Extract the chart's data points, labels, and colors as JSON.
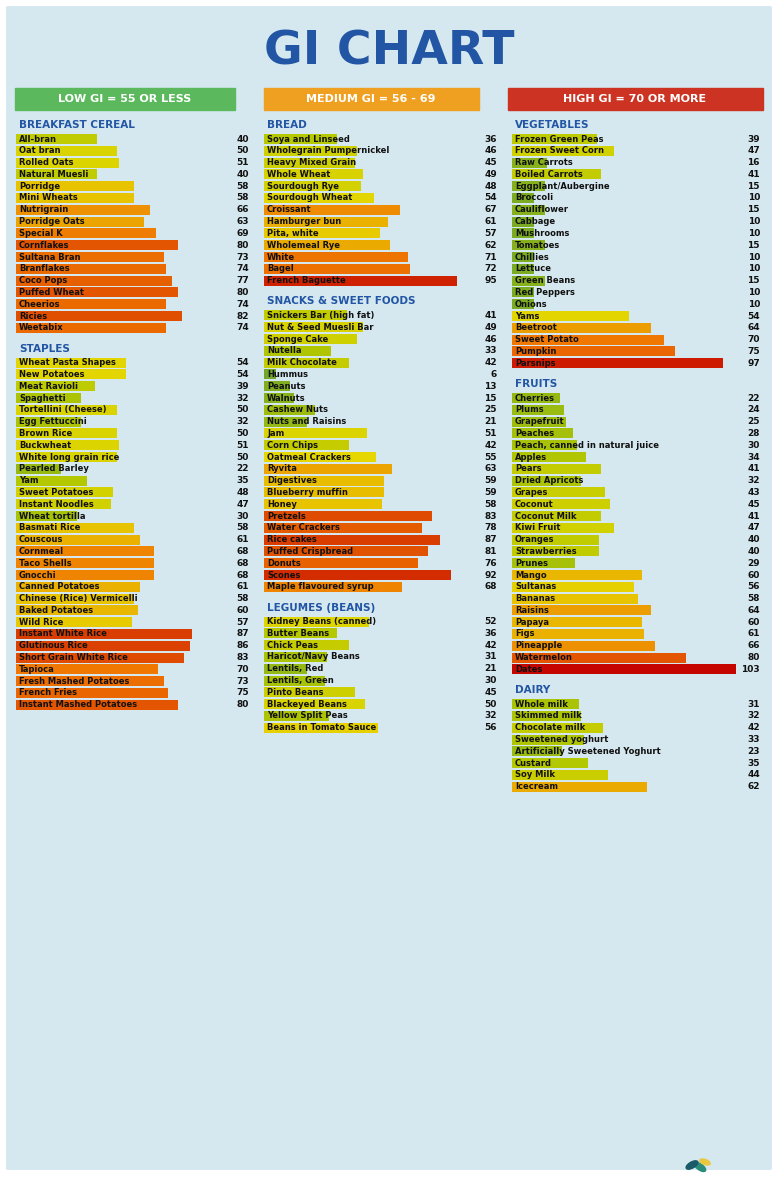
{
  "title": "GI CHART",
  "title_color": "#2255a4",
  "bg_color": "#d8e8f0",
  "low_label": "LOW GI = 55 OR LESS",
  "med_label": "MEDIUM GI = 56 - 69",
  "high_label": "HIGH GI = 70 OR MORE",
  "low_color": "#5cb85c",
  "med_color": "#f0a020",
  "high_color": "#cc3322",
  "section_title_color": "#2255a4",
  "bar_max_gi": 105,
  "columns": [
    {
      "sections": [
        {
          "title": "BREAKFAST CEREAL",
          "items": [
            [
              "All-bran",
              40
            ],
            [
              "Oat bran",
              50
            ],
            [
              "Rolled Oats",
              51
            ],
            [
              "Natural Muesli",
              40
            ],
            [
              "Porridge",
              58
            ],
            [
              "Mini Wheats",
              58
            ],
            [
              "Nutrigrain",
              66
            ],
            [
              "Porridge Oats",
              63
            ],
            [
              "Special K",
              69
            ],
            [
              "Cornflakes",
              80
            ],
            [
              "Sultana Bran",
              73
            ],
            [
              "Branflakes",
              74
            ],
            [
              "Coco Pops",
              77
            ],
            [
              "Puffed Wheat",
              80
            ],
            [
              "Cheerios",
              74
            ],
            [
              "Ricies",
              82
            ],
            [
              "Weetabix",
              74
            ]
          ]
        },
        {
          "title": "STAPLES",
          "items": [
            [
              "Wheat Pasta Shapes",
              54
            ],
            [
              "New Potatoes",
              54
            ],
            [
              "Meat Ravioli",
              39
            ],
            [
              "Spaghetti",
              32
            ],
            [
              "Tortellini (Cheese)",
              50
            ],
            [
              "Egg Fettuccini",
              32
            ],
            [
              "Brown Rice",
              50
            ],
            [
              "Buckwheat",
              51
            ],
            [
              "White long grain rice",
              50
            ],
            [
              "Pearled Barley",
              22
            ],
            [
              "Yam",
              35
            ],
            [
              "Sweet Potatoes",
              48
            ],
            [
              "Instant Noodles",
              47
            ],
            [
              "Wheat tortilla",
              30
            ],
            [
              "Basmati Rice",
              58
            ],
            [
              "Couscous",
              61
            ],
            [
              "Cornmeal",
              68
            ],
            [
              "Taco Shells",
              68
            ],
            [
              "Gnocchi",
              68
            ],
            [
              "Canned Potatoes",
              61
            ],
            [
              "Chinese (Rice) Vermicelli",
              58
            ],
            [
              "Baked Potatoes",
              60
            ],
            [
              "Wild Rice",
              57
            ],
            [
              "Instant White Rice",
              87
            ],
            [
              "Glutinous Rice",
              86
            ],
            [
              "Short Grain White Rice",
              83
            ],
            [
              "Tapioca",
              70
            ],
            [
              "Fresh Mashed Potatoes",
              73
            ],
            [
              "French Fries",
              75
            ],
            [
              "Instant Mashed Potatoes",
              80
            ]
          ]
        }
      ]
    },
    {
      "sections": [
        {
          "title": "BREAD",
          "items": [
            [
              "Soya and Linseed",
              36
            ],
            [
              "Wholegrain Pumpernickel",
              46
            ],
            [
              "Heavy Mixed Grain",
              45
            ],
            [
              "Whole Wheat",
              49
            ],
            [
              "Sourdough Rye",
              48
            ],
            [
              "Sourdough Wheat",
              54
            ],
            [
              "Croissant",
              67
            ],
            [
              "Hamburger bun",
              61
            ],
            [
              "Pita, white",
              57
            ],
            [
              "Wholemeal Rye",
              62
            ],
            [
              "White",
              71
            ],
            [
              "Bagel",
              72
            ],
            [
              "French Baguette",
              95
            ]
          ]
        },
        {
          "title": "SNACKS & SWEET FOODS",
          "items": [
            [
              "Snickers Bar (high fat)",
              41
            ],
            [
              "Nut & Seed Muesli Bar",
              49
            ],
            [
              "Sponge Cake",
              46
            ],
            [
              "Nutella",
              33
            ],
            [
              "Milk Chocolate",
              42
            ],
            [
              "Hummus",
              6
            ],
            [
              "Peanuts",
              13
            ],
            [
              "Walnuts",
              15
            ],
            [
              "Cashew Nuts",
              25
            ],
            [
              "Nuts and Raisins",
              21
            ],
            [
              "Jam",
              51
            ],
            [
              "Corn Chips",
              42
            ],
            [
              "Oatmeal Crackers",
              55
            ],
            [
              "Ryvita",
              63
            ],
            [
              "Digestives",
              59
            ],
            [
              "Blueberry muffin",
              59
            ],
            [
              "Honey",
              58
            ],
            [
              "Pretzels",
              83
            ],
            [
              "Water Crackers",
              78
            ],
            [
              "Rice cakes",
              87
            ],
            [
              "Puffed Crispbread",
              81
            ],
            [
              "Donuts",
              76
            ],
            [
              "Scones",
              92
            ],
            [
              "Maple flavoured syrup",
              68
            ]
          ]
        },
        {
          "title": "LEGUMES (BEANS)",
          "items": [
            [
              "Kidney Beans (canned)",
              52
            ],
            [
              "Butter Beans",
              36
            ],
            [
              "Chick Peas",
              42
            ],
            [
              "Haricot/Navy Beans",
              31
            ],
            [
              "Lentils, Red",
              21
            ],
            [
              "Lentils, Green",
              30
            ],
            [
              "Pinto Beans",
              45
            ],
            [
              "Blackeyed Beans",
              50
            ],
            [
              "Yellow Split Peas",
              32
            ],
            [
              "Beans in Tomato Sauce",
              56
            ]
          ]
        }
      ]
    },
    {
      "sections": [
        {
          "title": "VEGETABLES",
          "items": [
            [
              "Frozen Green Peas",
              39
            ],
            [
              "Frozen Sweet Corn",
              47
            ],
            [
              "Raw Carrots",
              16
            ],
            [
              "Boiled Carrots",
              41
            ],
            [
              "Eggplant/Aubergine",
              15
            ],
            [
              "Broccoli",
              10
            ],
            [
              "Cauliflower",
              15
            ],
            [
              "Cabbage",
              10
            ],
            [
              "Mushrooms",
              10
            ],
            [
              "Tomatoes",
              15
            ],
            [
              "Chillies",
              10
            ],
            [
              "Lettuce",
              10
            ],
            [
              "Green Beans",
              15
            ],
            [
              "Red Peppers",
              10
            ],
            [
              "Onions",
              10
            ],
            [
              "Yams",
              54
            ],
            [
              "Beetroot",
              64
            ],
            [
              "Sweet Potato",
              70
            ],
            [
              "Pumpkin",
              75
            ],
            [
              "Parsnips",
              97
            ]
          ]
        },
        {
          "title": "FRUITS",
          "items": [
            [
              "Cherries",
              22
            ],
            [
              "Plums",
              24
            ],
            [
              "Grapefruit",
              25
            ],
            [
              "Peaches",
              28
            ],
            [
              "Peach, canned in natural juice",
              30
            ],
            [
              "Apples",
              34
            ],
            [
              "Pears",
              41
            ],
            [
              "Dried Apricots",
              32
            ],
            [
              "Grapes",
              43
            ],
            [
              "Coconut",
              45
            ],
            [
              "Coconut Milk",
              41
            ],
            [
              "Kiwi Fruit",
              47
            ],
            [
              "Oranges",
              40
            ],
            [
              "Strawberries",
              40
            ],
            [
              "Prunes",
              29
            ],
            [
              "Mango",
              60
            ],
            [
              "Sultanas",
              56
            ],
            [
              "Bananas",
              58
            ],
            [
              "Raisins",
              64
            ],
            [
              "Papaya",
              60
            ],
            [
              "Figs",
              61
            ],
            [
              "Pineapple",
              66
            ],
            [
              "Watermelon",
              80
            ],
            [
              "Dates",
              103
            ]
          ]
        },
        {
          "title": "DAIRY",
          "items": [
            [
              "Whole milk",
              31
            ],
            [
              "Skimmed milk",
              32
            ],
            [
              "Chocolate milk",
              42
            ],
            [
              "Sweetened yoghurt",
              33
            ],
            [
              "Artificially Sweetened Yoghurt",
              23
            ],
            [
              "Custard",
              35
            ],
            [
              "Soy Milk",
              44
            ],
            [
              "Icecream",
              62
            ]
          ]
        }
      ]
    }
  ]
}
